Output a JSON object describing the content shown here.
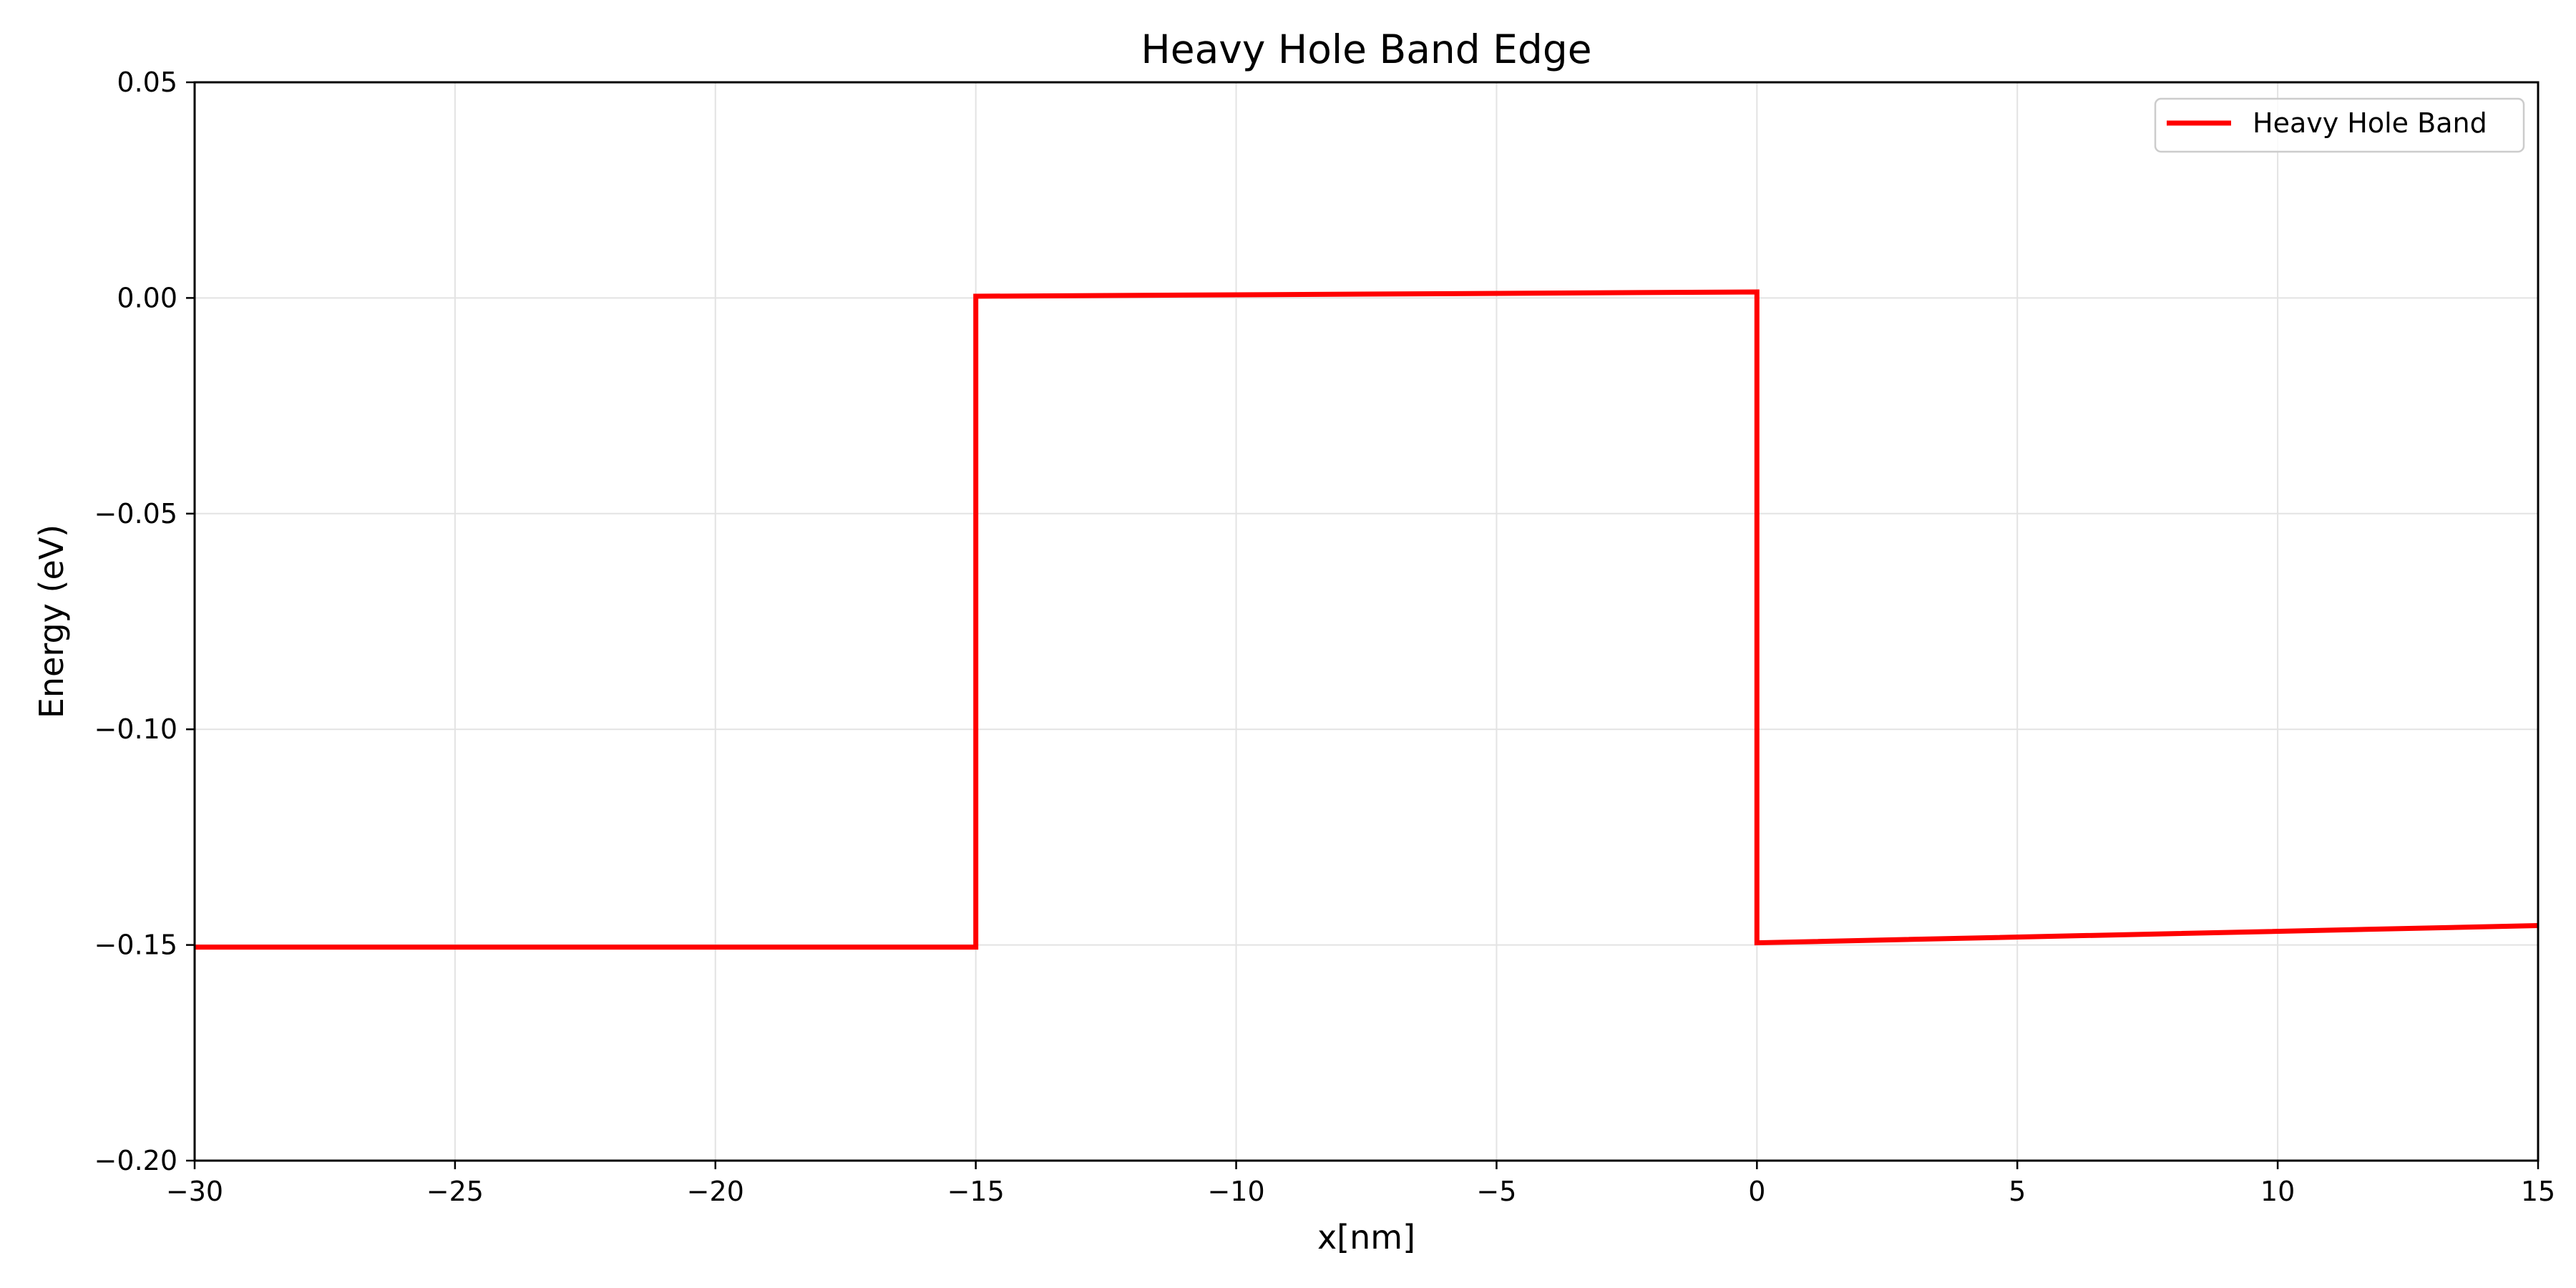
{
  "chart_data": {
    "type": "line",
    "title": "Heavy Hole Band Edge",
    "xlabel": "x[nm]",
    "ylabel": "Energy (eV)",
    "xlim": [
      -30,
      15
    ],
    "ylim": [
      -0.2,
      0.05
    ],
    "xticks": [
      -30,
      -25,
      -20,
      -15,
      -10,
      -5,
      0,
      5,
      10,
      15
    ],
    "xtick_labels": [
      "−30",
      "−25",
      "−20",
      "−15",
      "−10",
      "−5",
      "0",
      "5",
      "10",
      "15"
    ],
    "yticks": [
      -0.2,
      -0.15,
      -0.1,
      -0.05,
      0.0,
      0.05
    ],
    "ytick_labels": [
      "−0.20",
      "−0.15",
      "−0.10",
      "−0.05",
      "0.00",
      "0.05"
    ],
    "grid": true,
    "legend_position": "top-right",
    "series": [
      {
        "name": "Heavy Hole Band",
        "color": "#ff0000",
        "x": [
          -30,
          -15,
          -15,
          0,
          0,
          15
        ],
        "y": [
          -0.1505,
          -0.1505,
          0.0004,
          0.0014,
          -0.1495,
          -0.1455
        ]
      }
    ]
  }
}
